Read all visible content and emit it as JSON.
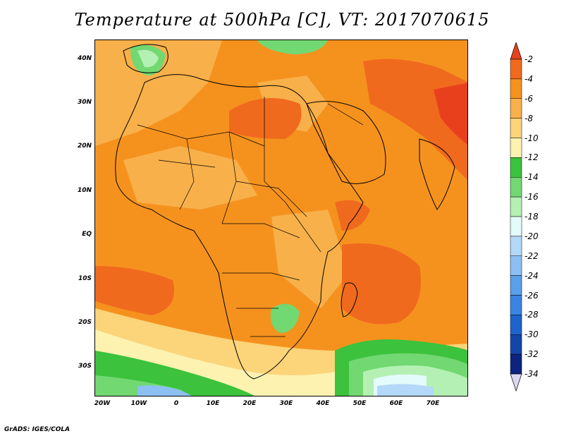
{
  "title": "Temperature at 500hPa [C], VT: 2017070615",
  "footer": "GrADS: IGES/COLA",
  "lat_labels": [
    "40N",
    "30N",
    "20N",
    "10N",
    "EQ",
    "10S",
    "20S",
    "30S"
  ],
  "lon_labels": [
    "20W",
    "10W",
    "0",
    "10E",
    "20E",
    "30E",
    "40E",
    "50E",
    "60E",
    "70E"
  ],
  "colorbar": {
    "levels": [
      "-2",
      "-4",
      "-6",
      "-8",
      "-10",
      "-12",
      "-14",
      "-16",
      "-18",
      "-20",
      "-22",
      "-24",
      "-26",
      "-28",
      "-30",
      "-32",
      "-34"
    ],
    "colors": [
      "#e8401c",
      "#f06a1e",
      "#f5921e",
      "#f8b04a",
      "#fcd47a",
      "#fdf2b0",
      "#3cc23c",
      "#72d872",
      "#b4f0b4",
      "#e4fbfb",
      "#b4d8f8",
      "#8cc0f4",
      "#5aa0ea",
      "#3a84e2",
      "#1e64cc",
      "#1446a8",
      "#0c2480",
      "#dcd8f4"
    ]
  },
  "colors": {
    "dominant": "#f5921e",
    "warm_core": "#e8401c",
    "cool_south": "#72d872",
    "coast_line": "#000000"
  }
}
